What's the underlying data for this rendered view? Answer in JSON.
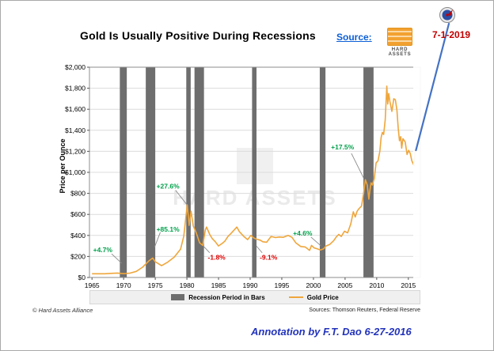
{
  "header": {
    "title": "Gold Is Usually Positive During Recessions",
    "source_label": "Source:",
    "logo_text": "HARD ASSETS",
    "annotation_date": "7-1-2019"
  },
  "footer": {
    "copyright": "© Hard Assets Alliance",
    "credit": "Annotation by F.T. Dao  6-27-2016"
  },
  "chart_data": {
    "type": "line",
    "title": "Gold Is Usually Positive During Recessions",
    "ylabel": "Price per Ounce",
    "xlabel": "",
    "ylim": [
      0,
      2000
    ],
    "xlim": [
      1964.6,
      2016.9
    ],
    "grid": true,
    "legend_position": "bottom",
    "watermark": "HARD ASSETS",
    "sources_note": "Sources: Thomson Reuters, Federal Reserve",
    "y_ticks": [
      {
        "v": 0,
        "label": "$0"
      },
      {
        "v": 200,
        "label": "$200"
      },
      {
        "v": 400,
        "label": "$400"
      },
      {
        "v": 600,
        "label": "$600"
      },
      {
        "v": 800,
        "label": "$800"
      },
      {
        "v": 1000,
        "label": "$1,000"
      },
      {
        "v": 1200,
        "label": "$1,200"
      },
      {
        "v": 1400,
        "label": "$1,400"
      },
      {
        "v": 1600,
        "label": "$1,600"
      },
      {
        "v": 1800,
        "label": "$1,800"
      },
      {
        "v": 2000,
        "label": "$2,000"
      }
    ],
    "x_ticks": [
      1965,
      1970,
      1975,
      1980,
      1985,
      1990,
      1995,
      2000,
      2005,
      2010,
      2015
    ],
    "legend": [
      {
        "label": "Recession Period in Bars",
        "swatch": "bar",
        "color": "#6E6E6E"
      },
      {
        "label": "Gold Price",
        "swatch": "line",
        "color": "#EFA63C"
      }
    ],
    "recession_periods": [
      [
        1969.4,
        1970.5
      ],
      [
        1973.5,
        1975.0
      ],
      [
        1979.9,
        1980.6
      ],
      [
        1981.2,
        1982.7
      ],
      [
        1990.3,
        1991.0
      ],
      [
        2001.0,
        2001.9
      ],
      [
        2007.9,
        2009.5
      ]
    ],
    "gold_price": [
      [
        1965,
        35
      ],
      [
        1966,
        35
      ],
      [
        1967,
        35
      ],
      [
        1968,
        39
      ],
      [
        1969,
        42
      ],
      [
        1970,
        36
      ],
      [
        1971,
        41
      ],
      [
        1972,
        58
      ],
      [
        1973,
        98
      ],
      [
        1974,
        158
      ],
      [
        1974.6,
        185
      ],
      [
        1975,
        150
      ],
      [
        1976,
        112
      ],
      [
        1977,
        147
      ],
      [
        1978,
        193
      ],
      [
        1979,
        270
      ],
      [
        1979.5,
        390
      ],
      [
        1980.05,
        690
      ],
      [
        1980.35,
        495
      ],
      [
        1980.65,
        630
      ],
      [
        1981,
        490
      ],
      [
        1981.5,
        420
      ],
      [
        1982,
        330
      ],
      [
        1982.5,
        305
      ],
      [
        1982.9,
        450
      ],
      [
        1983.1,
        480
      ],
      [
        1983.6,
        410
      ],
      [
        1984,
        370
      ],
      [
        1984.5,
        340
      ],
      [
        1985,
        300
      ],
      [
        1985.6,
        325
      ],
      [
        1986,
        345
      ],
      [
        1986.5,
        390
      ],
      [
        1987,
        420
      ],
      [
        1987.9,
        480
      ],
      [
        1988.3,
        435
      ],
      [
        1989,
        390
      ],
      [
        1989.6,
        360
      ],
      [
        1990.1,
        400
      ],
      [
        1990.6,
        375
      ],
      [
        1991,
        365
      ],
      [
        1991.6,
        355
      ],
      [
        1992,
        340
      ],
      [
        1992.6,
        335
      ],
      [
        1993.3,
        390
      ],
      [
        1994,
        380
      ],
      [
        1994.6,
        385
      ],
      [
        1995.2,
        382
      ],
      [
        1996,
        400
      ],
      [
        1996.6,
        382
      ],
      [
        1997.2,
        330
      ],
      [
        1998,
        295
      ],
      [
        1998.7,
        290
      ],
      [
        1999.4,
        258
      ],
      [
        1999.7,
        305
      ],
      [
        2000.1,
        282
      ],
      [
        2000.6,
        272
      ],
      [
        2001.1,
        262
      ],
      [
        2001.6,
        272
      ],
      [
        2002,
        300
      ],
      [
        2002.6,
        315
      ],
      [
        2003.2,
        350
      ],
      [
        2003.6,
        385
      ],
      [
        2004,
        410
      ],
      [
        2004.4,
        390
      ],
      [
        2004.9,
        440
      ],
      [
        2005.4,
        425
      ],
      [
        2005.9,
        510
      ],
      [
        2006.3,
        625
      ],
      [
        2006.6,
        575
      ],
      [
        2006.9,
        630
      ],
      [
        2007.2,
        655
      ],
      [
        2007.6,
        680
      ],
      [
        2007.9,
        790
      ],
      [
        2008.2,
        930
      ],
      [
        2008.5,
        880
      ],
      [
        2008.75,
        745
      ],
      [
        2008.9,
        820
      ],
      [
        2009.1,
        900
      ],
      [
        2009.3,
        880
      ],
      [
        2009.6,
        940
      ],
      [
        2009.9,
        1090
      ],
      [
        2010.2,
        1110
      ],
      [
        2010.5,
        1200
      ],
      [
        2010.7,
        1330
      ],
      [
        2010.9,
        1380
      ],
      [
        2011.1,
        1360
      ],
      [
        2011.35,
        1500
      ],
      [
        2011.6,
        1820
      ],
      [
        2011.75,
        1650
      ],
      [
        2011.9,
        1750
      ],
      [
        2012.1,
        1670
      ],
      [
        2012.4,
        1580
      ],
      [
        2012.7,
        1700
      ],
      [
        2012.95,
        1690
      ],
      [
        2013.2,
        1590
      ],
      [
        2013.4,
        1420
      ],
      [
        2013.6,
        1300
      ],
      [
        2013.8,
        1340
      ],
      [
        2013.95,
        1230
      ],
      [
        2014.15,
        1320
      ],
      [
        2014.5,
        1290
      ],
      [
        2014.8,
        1170
      ],
      [
        2015.05,
        1210
      ],
      [
        2015.3,
        1180
      ],
      [
        2015.55,
        1110
      ],
      [
        2015.9,
        1065
      ],
      [
        2016.1,
        1230
      ]
    ],
    "annotations": [
      {
        "label": "+4.7%",
        "x": 1966.7,
        "y": 263,
        "color": "#00A14B",
        "line": [
          1968.1,
          225,
          1969.7,
          135
        ]
      },
      {
        "label": "+85.1%",
        "x": 1977.0,
        "y": 460,
        "color": "#00A14B",
        "line": [
          1975.8,
          430,
          1974.9,
          290
        ]
      },
      {
        "label": "+27.6%",
        "x": 1977.0,
        "y": 870,
        "color": "#00A14B",
        "line": [
          1978.2,
          830,
          1979.9,
          700
        ]
      },
      {
        "label": "-1.8%",
        "x": 1984.7,
        "y": 190,
        "color": "#E00000",
        "line": [
          1983.6,
          235,
          1982.6,
          298
        ]
      },
      {
        "label": "-9.1%",
        "x": 1992.9,
        "y": 190,
        "color": "#E00000",
        "line": [
          1991.9,
          235,
          1991.0,
          298
        ]
      },
      {
        "label": "+4.6%",
        "x": 1998.3,
        "y": 420,
        "color": "#00A14B",
        "line": [
          1999.6,
          385,
          2001.2,
          300
        ]
      },
      {
        "label": "+17.5%",
        "x": 2004.6,
        "y": 1240,
        "color": "#00A14B",
        "line": [
          2006.0,
          1180,
          2007.9,
          950
        ]
      }
    ],
    "pointer": {
      "date_label": "7-1-2019",
      "target_x": 2016.2,
      "target_y": 1210,
      "color": "#4472C4"
    }
  }
}
